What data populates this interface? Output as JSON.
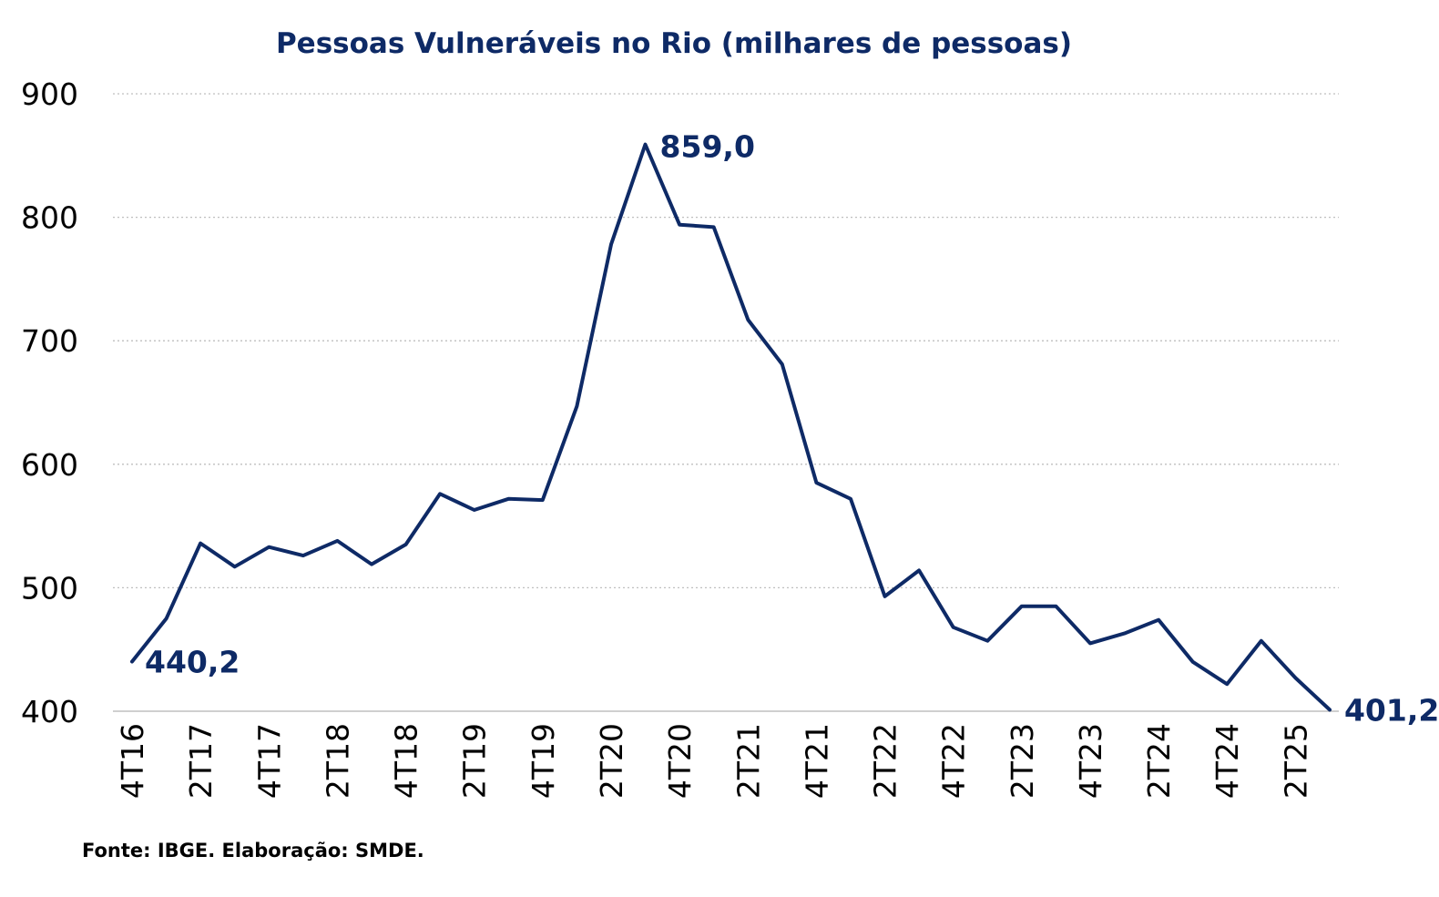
{
  "source_note": "Fonte: IBGE. Elaboração: SMDE.",
  "chart_data": {
    "type": "line",
    "title": "Pessoas Vulneráveis no Rio (milhares de pessoas)",
    "xlabel": "",
    "ylabel": "",
    "ylim": [
      400,
      900
    ],
    "yticks": [
      "900",
      "800",
      "700",
      "600",
      "500",
      "400"
    ],
    "grid": true,
    "legend": "none",
    "x": [
      "4T16",
      "1T17",
      "2T17",
      "3T17",
      "4T17",
      "1T18",
      "2T18",
      "3T18",
      "4T18",
      "1T19",
      "2T19",
      "3T19",
      "4T19",
      "1T20",
      "2T20",
      "3T20",
      "4T20",
      "1T21",
      "2T21",
      "3T21",
      "4T21",
      "1T22",
      "2T22",
      "3T22",
      "4T22",
      "1T23",
      "2T23",
      "3T23",
      "4T23",
      "1T24",
      "2T24",
      "3T24",
      "4T24",
      "1T25",
      "2T25",
      "3T25"
    ],
    "xtick_labels": [
      "4T16",
      "2T17",
      "4T17",
      "2T18",
      "4T18",
      "2T19",
      "4T19",
      "2T20",
      "4T20",
      "2T21",
      "4T21",
      "2T22",
      "4T22",
      "2T23",
      "4T23",
      "2T24",
      "4T24",
      "2T25"
    ],
    "series": [
      {
        "name": "Pessoas Vulneráveis",
        "color": "#0e2a66",
        "values": [
          440.2,
          475,
          536,
          517,
          533,
          526,
          538,
          519,
          535,
          576,
          563,
          572,
          571,
          647,
          778,
          859.0,
          794,
          792,
          717,
          681,
          585,
          572,
          493,
          514,
          468,
          457,
          485,
          485,
          455,
          463,
          474,
          440,
          422,
          457,
          427,
          401.2
        ]
      }
    ],
    "annotations": [
      {
        "label": "440,2",
        "index": 0
      },
      {
        "label": "859,0",
        "index": 15
      },
      {
        "label": "401,2",
        "index": 35
      }
    ]
  }
}
